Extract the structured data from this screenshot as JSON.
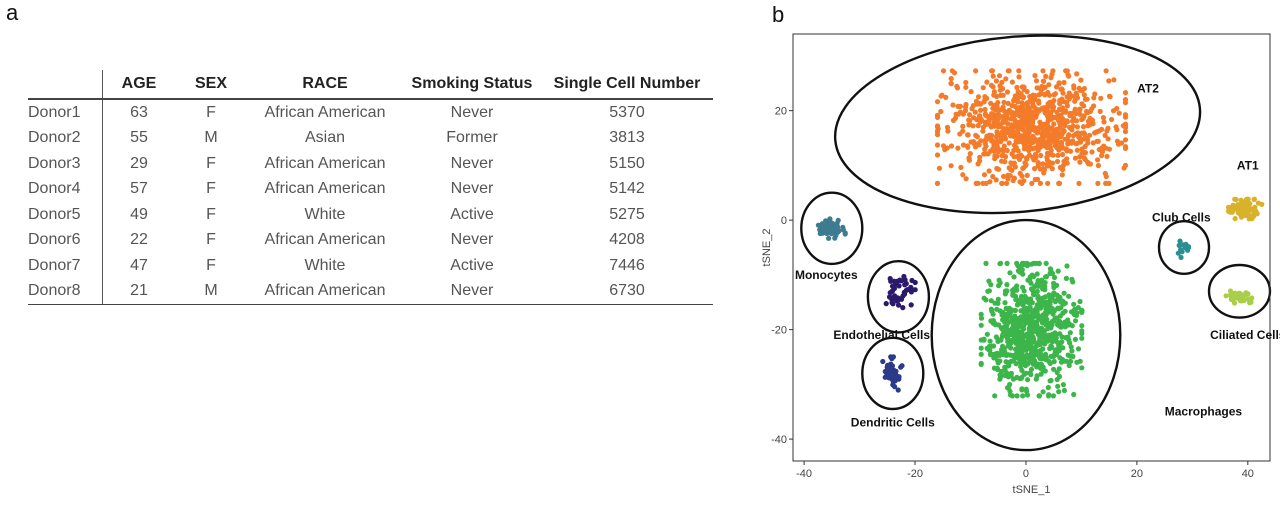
{
  "panels": {
    "a": "a",
    "b": "b"
  },
  "table": {
    "headers": [
      "",
      "AGE",
      "SEX",
      "RACE",
      "Smoking Status",
      "Single Cell Number"
    ],
    "rows": [
      [
        "Donor1",
        "63",
        "F",
        "African American",
        "Never",
        "5370"
      ],
      [
        "Donor2",
        "55",
        "M",
        "Asian",
        "Former",
        "3813"
      ],
      [
        "Donor3",
        "29",
        "F",
        "African American",
        "Never",
        "5150"
      ],
      [
        "Donor4",
        "57",
        "F",
        "African American",
        "Never",
        "5142"
      ],
      [
        "Donor5",
        "49",
        "F",
        "White",
        "Active",
        "5275"
      ],
      [
        "Donor6",
        "22",
        "F",
        "African American",
        "Never",
        "4208"
      ],
      [
        "Donor7",
        "47",
        "F",
        "White",
        "Active",
        "7446"
      ],
      [
        "Donor8",
        "21",
        "M",
        "African American",
        "Never",
        "6730"
      ]
    ]
  },
  "chart_data": {
    "type": "scatter",
    "xlabel": "tSNE_1",
    "ylabel": "tSNE_2",
    "xlim": [
      -42,
      44
    ],
    "ylim": [
      -44,
      34
    ],
    "xticks": [
      -40,
      -20,
      0,
      20,
      40
    ],
    "yticks": [
      20,
      0,
      -20,
      -40
    ],
    "grid": false,
    "clusters": [
      {
        "name": "AT2",
        "color": "#f47b2a",
        "center": [
          1,
          17
        ],
        "spread": [
          14,
          8.5
        ],
        "n": 900,
        "ellipse": {
          "cx": -1.5,
          "cy": 17.5,
          "rx": 33,
          "ry": 16,
          "angle": -5
        },
        "label_pos": [
          22,
          24
        ]
      },
      {
        "name": "Macrophages",
        "color": "#3cb54a",
        "center": [
          1,
          -20
        ],
        "spread": [
          7.5,
          10
        ],
        "n": 700,
        "ellipse": {
          "cx": 0,
          "cy": -21,
          "rx": 17,
          "ry": 21,
          "angle": 0
        },
        "label_pos": [
          32,
          -35
        ]
      },
      {
        "name": "Monocytes",
        "color": "#3e7a90",
        "center": [
          -35,
          -1.5
        ],
        "spread": [
          2,
          1.5
        ],
        "n": 70,
        "ellipse": {
          "cx": -35,
          "cy": -1.5,
          "rx": 5.5,
          "ry": 6.5,
          "angle": 0
        },
        "label_pos": [
          -36,
          -10
        ]
      },
      {
        "name": "Endothelial Cells",
        "color": "#2b1a6b",
        "center": [
          -23,
          -13
        ],
        "spread": [
          2.5,
          2.5
        ],
        "n": 45,
        "ellipse": {
          "cx": -23,
          "cy": -14,
          "rx": 5.5,
          "ry": 6.5,
          "angle": 0
        },
        "label_pos": [
          -26,
          -21
        ]
      },
      {
        "name": "Dendritic Cells",
        "color": "#2c3a8a",
        "center": [
          -24,
          -28
        ],
        "spread": [
          1.5,
          2.5
        ],
        "n": 40,
        "ellipse": {
          "cx": -24,
          "cy": -28,
          "rx": 5.5,
          "ry": 6.5,
          "angle": 0
        },
        "label_pos": [
          -24,
          -37
        ]
      },
      {
        "name": "Club Cells",
        "color": "#2a8f93",
        "center": [
          28.5,
          -5
        ],
        "spread": [
          1,
          1.5
        ],
        "n": 14,
        "ellipse": {
          "cx": 28.5,
          "cy": -5,
          "rx": 4.5,
          "ry": 4.8,
          "angle": 0
        },
        "label_pos": [
          28,
          0.5
        ]
      },
      {
        "name": "AT1",
        "color": "#d9b22c",
        "center": [
          39.5,
          2
        ],
        "spread": [
          2.5,
          1.5
        ],
        "n": 90,
        "ellipse": null,
        "label_pos": [
          40,
          10
        ]
      },
      {
        "name": "Ciliated Cells",
        "color": "#a9cf4a",
        "center": [
          38.5,
          -14
        ],
        "spread": [
          2,
          1
        ],
        "n": 45,
        "ellipse": {
          "cx": 38.5,
          "cy": -13,
          "rx": 5.5,
          "ry": 4.8,
          "angle": 0
        },
        "label_pos": [
          40,
          -21
        ]
      }
    ]
  }
}
